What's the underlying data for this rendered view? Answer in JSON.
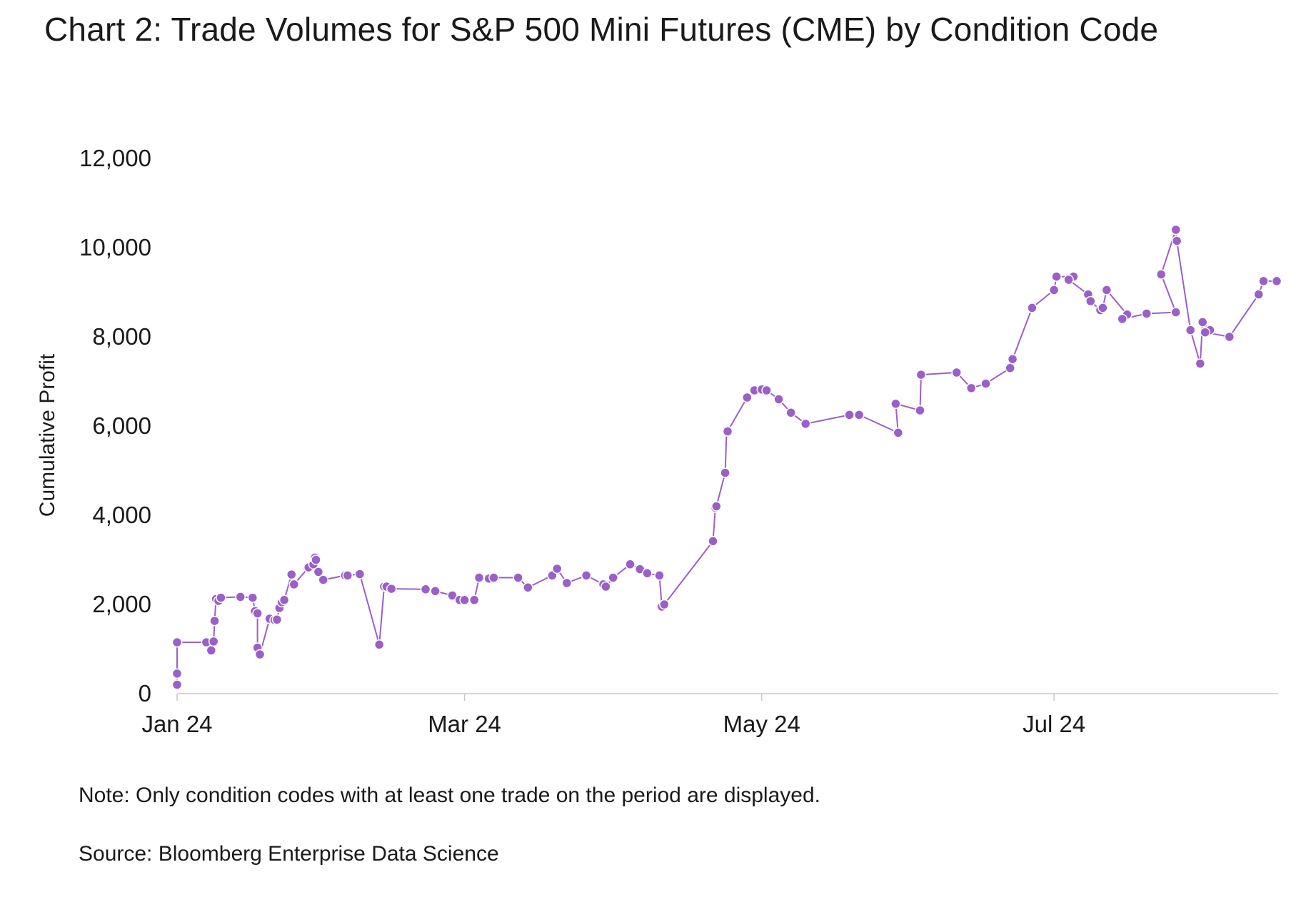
{
  "chart_data": {
    "type": "line",
    "title": "Chart 2: Trade Volumes for S&P 500 Mini Futures (CME) by Condition Code",
    "xlabel": "",
    "ylabel": "Cumulative Profit",
    "ylim": [
      0,
      12000
    ],
    "yticks": [
      0,
      2000,
      4000,
      6000,
      8000,
      10000,
      12000
    ],
    "ytick_labels": [
      "0",
      "2,000",
      "4,000",
      "6,000",
      "8,000",
      "10,000",
      "12,000"
    ],
    "xlim": [
      0,
      226
    ],
    "xticks": [
      0,
      59,
      120,
      180
    ],
    "xtick_labels": [
      "Jan 24",
      "Mar 24",
      "May 24",
      "Jul 24"
    ],
    "grid": false,
    "legend": "none",
    "series": [
      {
        "name": "Cumulative Profit",
        "color": "#9b5fc9",
        "x": [
          0,
          0,
          0,
          6,
          7,
          7.5,
          7.7,
          8,
          8.5,
          9,
          13,
          15.5,
          16,
          16.5,
          16.5,
          17,
          19,
          20,
          20.5,
          21,
          21.5,
          22,
          23.5,
          24,
          27,
          28,
          28.3,
          28.5,
          29,
          30,
          34.5,
          35,
          37.5,
          41.5,
          42.5,
          43,
          44,
          51,
          53,
          56.5,
          58,
          59,
          61,
          62,
          64,
          65,
          70,
          72,
          77,
          78,
          80,
          84,
          87.5,
          88,
          89.5,
          93,
          95,
          96.5,
          99,
          99.5,
          100,
          110,
          110.5,
          110.7,
          112.5,
          112.8,
          113,
          117,
          118.5,
          120,
          121,
          123.5,
          126,
          129,
          138,
          140,
          148,
          147.5,
          152.5,
          152.7,
          160,
          163,
          166,
          171,
          171.5,
          175.5,
          180,
          180.5,
          184,
          183,
          187,
          187.5,
          189.5,
          190,
          190.8,
          195,
          194,
          199,
          205,
          202,
          205,
          205.2,
          208,
          210,
          210.5,
          212,
          211,
          216,
          222,
          223,
          225.7
        ],
        "y": [
          200,
          450,
          1150,
          1150,
          970,
          1170,
          1630,
          2120,
          2080,
          2150,
          2170,
          2150,
          1850,
          1800,
          1030,
          880,
          1680,
          1650,
          1660,
          1920,
          2050,
          2100,
          2670,
          2450,
          2830,
          2900,
          3050,
          3000,
          2730,
          2550,
          2650,
          2650,
          2680,
          1100,
          2400,
          2400,
          2350,
          2340,
          2300,
          2200,
          2100,
          2100,
          2100,
          2600,
          2580,
          2600,
          2600,
          2380,
          2650,
          2800,
          2480,
          2650,
          2450,
          2400,
          2600,
          2900,
          2790,
          2700,
          2650,
          1950,
          2000,
          3420,
          4170,
          4200,
          4950,
          5900,
          5880,
          6640,
          6800,
          6820,
          6800,
          6600,
          6300,
          6050,
          6250,
          6250,
          5850,
          6500,
          6350,
          7150,
          7200,
          6850,
          6950,
          7300,
          7500,
          8650,
          9050,
          9350,
          9350,
          9280,
          8950,
          8800,
          8600,
          8650,
          9050,
          8500,
          8400,
          8520,
          8550,
          9400,
          10400,
          10150,
          8150,
          7400,
          8330,
          8150,
          8100,
          8000,
          8950,
          9250,
          9250
        ]
      }
    ]
  },
  "footer": {
    "note": "Note: Only condition codes with at least one trade on the period are displayed.",
    "source": "Source: Bloomberg Enterprise Data Science"
  }
}
